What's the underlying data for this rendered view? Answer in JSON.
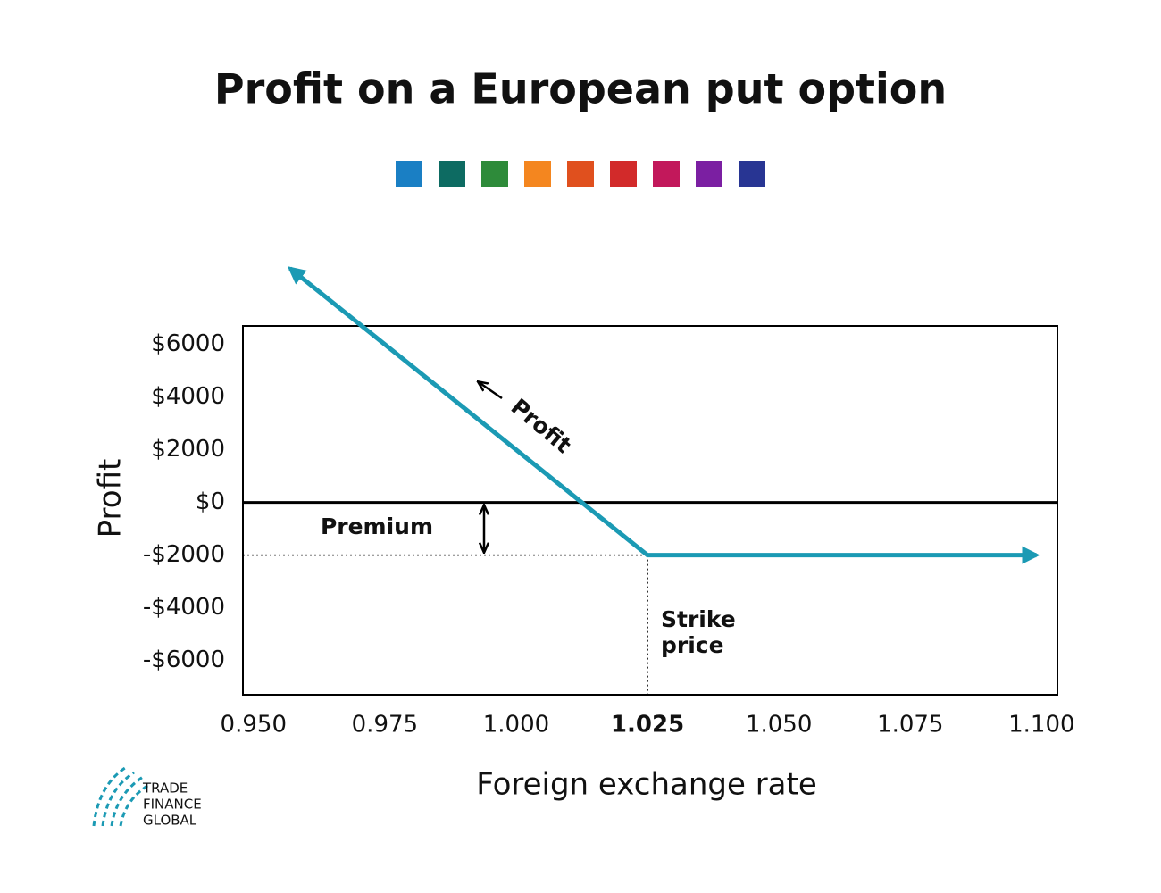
{
  "chart_data": {
    "type": "line",
    "title": "Profit on a European put option",
    "x_label": "Foreign exchange rate",
    "y_label": "Profit",
    "x": [
      0.957,
      1.025,
      1.099
    ],
    "series": [
      {
        "name": "Profit",
        "color": "#1b9ab4",
        "values": [
          8880,
          -2000,
          -2000
        ]
      }
    ],
    "xlim": [
      0.948,
      1.103
    ],
    "ylim": [
      -7300,
      6700
    ],
    "xticks": [
      {
        "value": 0.95,
        "label": "0.950"
      },
      {
        "value": 0.975,
        "label": "0.975"
      },
      {
        "value": 1.0,
        "label": "1.000"
      },
      {
        "value": 1.025,
        "label": "1.025"
      },
      {
        "value": 1.05,
        "label": "1.050"
      },
      {
        "value": 1.075,
        "label": "1.075"
      },
      {
        "value": 1.1,
        "label": "1.100"
      }
    ],
    "yticks": [
      {
        "value": 6000,
        "label": "$6000"
      },
      {
        "value": 4000,
        "label": "$4000"
      },
      {
        "value": 2000,
        "label": "$2000"
      },
      {
        "value": 0,
        "label": "$0"
      },
      {
        "value": -2000,
        "label": "-$2000"
      },
      {
        "value": -4000,
        "label": "-$4000"
      },
      {
        "value": -6000,
        "label": "-$6000"
      }
    ],
    "zero_line": true,
    "annotations": {
      "premium": "Premium",
      "strike": [
        "Strike",
        "price"
      ],
      "line_label": "Profit"
    }
  },
  "logo": [
    "TRADE",
    "FINANCE",
    "GLOBAL"
  ]
}
